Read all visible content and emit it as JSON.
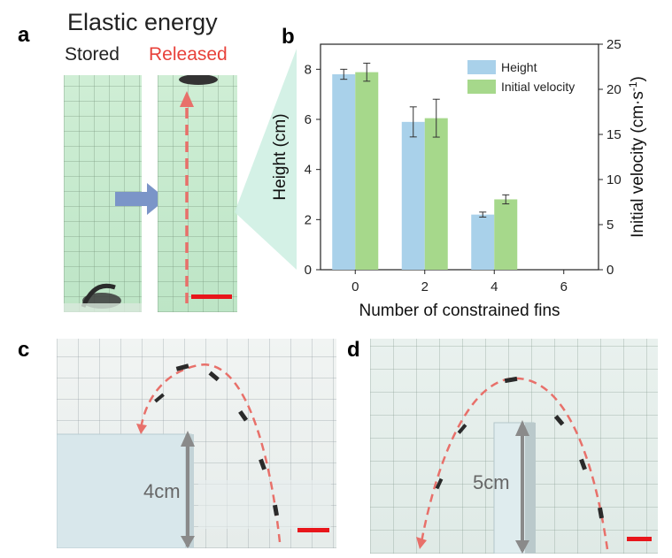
{
  "panel_a": {
    "label": "a",
    "title": "Elastic energy",
    "stored_label": "Stored",
    "released_label": "Released"
  },
  "panel_b": {
    "label": "b"
  },
  "panel_c": {
    "label": "c",
    "height_annotation": "4cm"
  },
  "panel_d": {
    "label": "d",
    "height_annotation": "5cm"
  },
  "colors": {
    "height_bar": "#a9d1ea",
    "velocity_bar": "#a6d88b",
    "released_text": "#e8413a",
    "scale_bar": "#e8161b",
    "trajectory": "#e8706a"
  },
  "chart_data": {
    "type": "bar",
    "categories": [
      "0",
      "2",
      "4",
      "6"
    ],
    "xlabel": "Number of constrained fins",
    "ylabel": "Height (cm)",
    "y2label": "Initial velocity (cm·s",
    "y2label_sup": "-1",
    "ylim": [
      0,
      9
    ],
    "y2lim": [
      0,
      25
    ],
    "yticks": [
      0,
      2,
      4,
      6,
      8
    ],
    "y2ticks": [
      0,
      5,
      10,
      15,
      20,
      25
    ],
    "legend_position": "top-right",
    "series": [
      {
        "name": "Height",
        "axis": "left",
        "values": [
          7.8,
          5.9,
          2.2,
          null
        ],
        "errors": [
          0.2,
          0.6,
          0.1,
          null
        ]
      },
      {
        "name": "Initial velocity",
        "axis": "right",
        "values": [
          21.9,
          16.8,
          7.8,
          null
        ],
        "errors": [
          1.0,
          2.1,
          0.5,
          null
        ]
      }
    ]
  }
}
